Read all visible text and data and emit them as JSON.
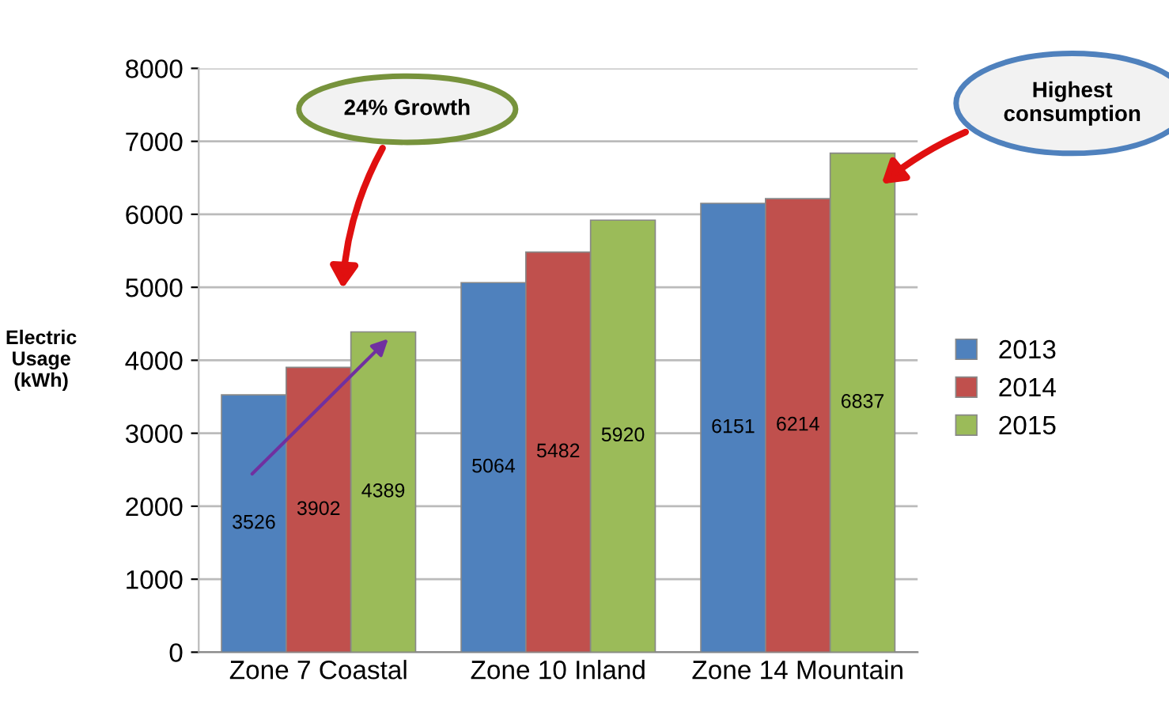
{
  "chart_data": {
    "type": "bar",
    "ylabel": "Electric\nUsage\n(kWh)",
    "categories": [
      "Zone 7 Coastal",
      "Zone 10 Inland",
      "Zone 14 Mountain"
    ],
    "series": [
      {
        "name": "2013",
        "color": "#4f81bd",
        "values": [
          3526,
          5064,
          6151
        ]
      },
      {
        "name": "2014",
        "color": "#c0504d",
        "values": [
          3902,
          5482,
          6214
        ]
      },
      {
        "name": "2015",
        "color": "#9bbb59",
        "values": [
          4389,
          5920,
          6837
        ]
      }
    ],
    "ylim": [
      0,
      8000
    ],
    "yticks": [
      0,
      1000,
      2000,
      3000,
      4000,
      5000,
      6000,
      7000,
      8000
    ],
    "grid": "y",
    "legend": "right",
    "data_labels": true,
    "annotations": [
      "24% Growth",
      "Highest\nconsumption"
    ]
  }
}
